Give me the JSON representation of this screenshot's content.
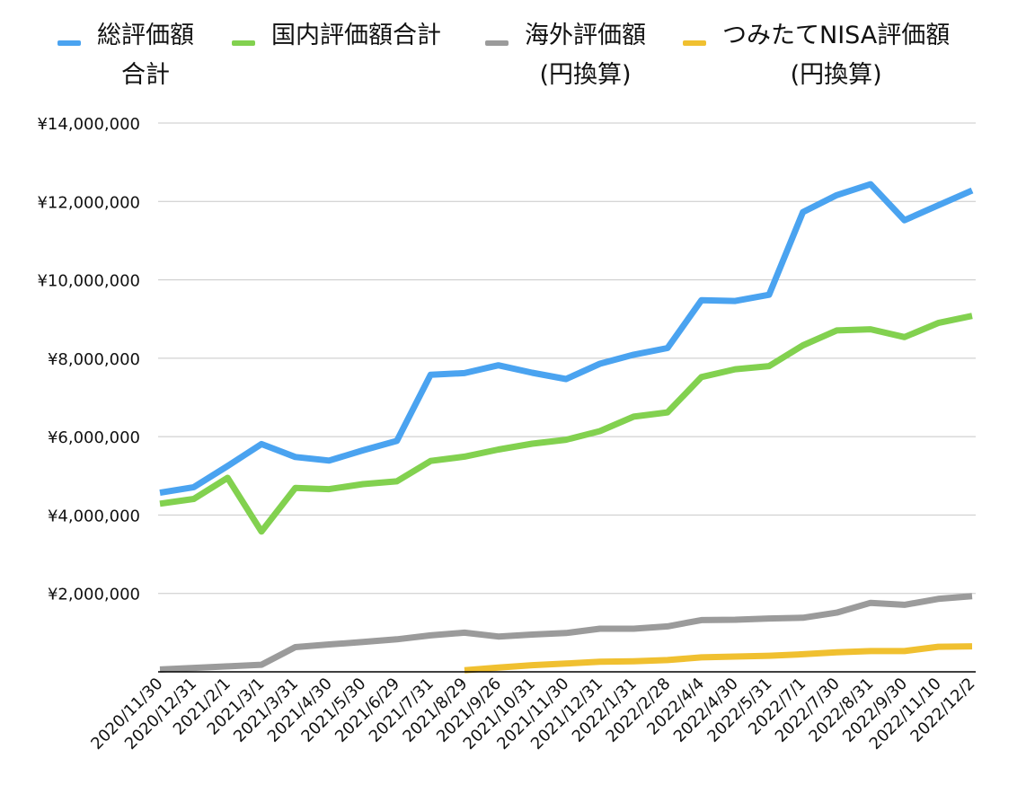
{
  "chart_data": {
    "type": "line",
    "title": "",
    "xlabel": "",
    "ylabel": "",
    "ylim": [
      0,
      14000000
    ],
    "yticks": [
      "¥14,000,000",
      "¥12,000,000",
      "¥10,000,000",
      "¥8,000,000",
      "¥6,000,000",
      "¥4,000,000",
      "¥2,000,000"
    ],
    "ytick_values": [
      14000000,
      12000000,
      10000000,
      8000000,
      6000000,
      4000000,
      2000000
    ],
    "grid": true,
    "legend_position": "top",
    "categories": [
      "2020/11/30",
      "2020/12/31",
      "2021/2/1",
      "2021/3/1",
      "2021/3/31",
      "2021/4/30",
      "2021/5/30",
      "2021/6/29",
      "2021/7/31",
      "2021/8/29",
      "2021/9/26",
      "2021/10/31",
      "2021/11/30",
      "2021/12/31",
      "2022/1/31",
      "2022/2/28",
      "2022/4/4",
      "2022/4/30",
      "2022/5/31",
      "2022/7/1",
      "2022/7/30",
      "2022/8/31",
      "2022/9/30",
      "2022/11/10",
      "2022/12/2"
    ],
    "series": [
      {
        "name": "総評価額\n合計",
        "color": "#4aa3f0",
        "values": [
          4570000,
          4710000,
          5250000,
          5810000,
          5480000,
          5390000,
          5650000,
          5890000,
          7580000,
          7620000,
          7820000,
          7630000,
          7470000,
          7860000,
          8090000,
          8260000,
          9480000,
          9460000,
          9620000,
          11730000,
          12160000,
          12440000,
          11520000,
          11900000,
          12280000
        ]
      },
      {
        "name": "国内評価額合計",
        "color": "#82d14f",
        "values": [
          4290000,
          4410000,
          4950000,
          3580000,
          4690000,
          4660000,
          4790000,
          4860000,
          5380000,
          5490000,
          5670000,
          5820000,
          5920000,
          6140000,
          6510000,
          6620000,
          7520000,
          7720000,
          7800000,
          8330000,
          8710000,
          8740000,
          8540000,
          8900000,
          9080000
        ]
      },
      {
        "name": "海外評価額\n(円換算)",
        "color": "#9b9b9b",
        "values": [
          60000,
          100000,
          140000,
          180000,
          630000,
          700000,
          760000,
          830000,
          930000,
          1000000,
          900000,
          950000,
          990000,
          1100000,
          1100000,
          1160000,
          1320000,
          1330000,
          1360000,
          1380000,
          1510000,
          1760000,
          1710000,
          1860000,
          1930000
        ]
      },
      {
        "name": "つみたてNISA評価額\n(円換算)",
        "color": "#f0c030",
        "values": [
          null,
          null,
          null,
          null,
          null,
          null,
          null,
          null,
          null,
          40000,
          110000,
          170000,
          210000,
          260000,
          270000,
          300000,
          370000,
          390000,
          410000,
          450000,
          500000,
          530000,
          530000,
          640000,
          650000
        ]
      }
    ]
  }
}
